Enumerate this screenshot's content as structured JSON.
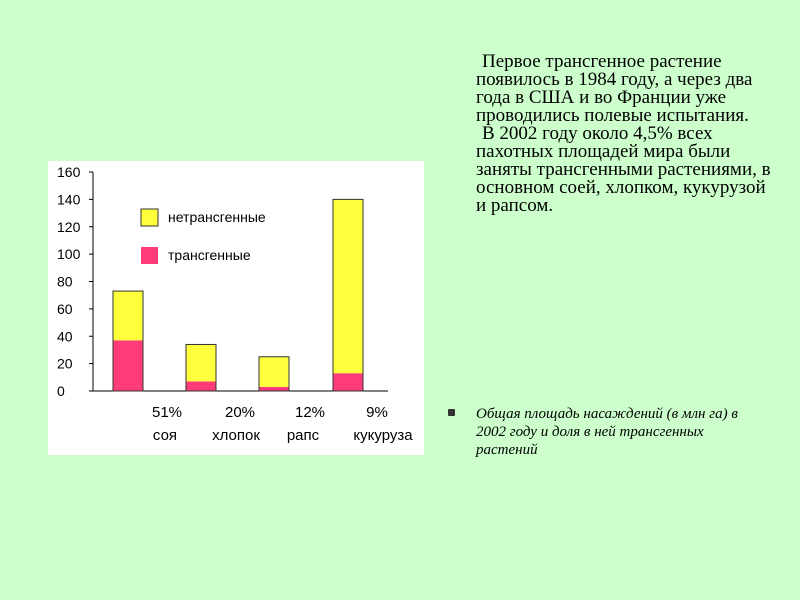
{
  "text": {
    "para1": "Первое трансгенное растение появилось в 1984 году, а через два года в США и во Франции уже проводились полевые испытания.",
    "para2": "В 2002 году около 4,5% всех пахотных площадей мира были заняты трансгенными растениями, в основном соей, хлопком, кукурузой и рапсом.",
    "note": "Общая площадь насаждений (в млн га) в 2002 году и доля в ней трансгенных растений"
  },
  "chart_data": {
    "type": "bar",
    "stacked": true,
    "categories": [
      "соя",
      "хлопок",
      "рапс",
      "кукуруза"
    ],
    "category_percents": [
      "51%",
      "20%",
      "12%",
      "9%"
    ],
    "series": [
      {
        "name": "трансгенные",
        "color": "#ff3c78",
        "values": [
          37,
          7,
          3,
          13
        ]
      },
      {
        "name": "нетрансгенные",
        "color": "#ffff3c",
        "values": [
          36,
          27,
          22,
          127
        ]
      }
    ],
    "ylim": [
      0,
      160
    ],
    "yticks": [
      0,
      20,
      40,
      60,
      80,
      100,
      120,
      140,
      160
    ],
    "legend": "top-left-inside",
    "grid": false
  }
}
